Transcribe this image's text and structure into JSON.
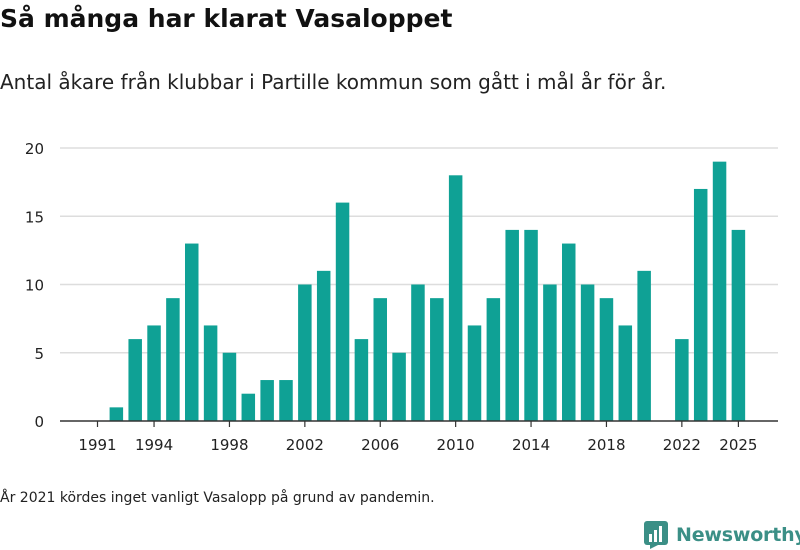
{
  "header": {
    "title": "Så många har klarat Vasaloppet",
    "subtitle": "Antal åkare från klubbar i Partille kommun som gått i mål år för år."
  },
  "footnote": "År 2021 kördes inget vanligt Vasalopp på grund av pandemin.",
  "brand": {
    "name": "Newsworthy",
    "icon": "bar-chart-logo-icon",
    "color": "#3b8f86"
  },
  "colors": {
    "bar": "#0fa195",
    "grid": "#dddddd",
    "axis": "#333333",
    "text": "#222222"
  },
  "chart_data": {
    "type": "bar",
    "title": "Så många har klarat Vasaloppet",
    "subtitle": "Antal åkare från klubbar i Partille kommun som gått i mål år för år.",
    "xlabel": "",
    "ylabel": "",
    "x": [
      1991,
      1992,
      1993,
      1994,
      1995,
      1996,
      1997,
      1998,
      1999,
      2000,
      2001,
      2002,
      2003,
      2004,
      2005,
      2006,
      2007,
      2008,
      2009,
      2010,
      2011,
      2012,
      2013,
      2014,
      2015,
      2016,
      2017,
      2018,
      2019,
      2020,
      2021,
      2022,
      2023,
      2024,
      2025
    ],
    "values": [
      0,
      1,
      6,
      7,
      9,
      13,
      7,
      5,
      2,
      3,
      3,
      10,
      11,
      16,
      6,
      9,
      5,
      10,
      9,
      18,
      7,
      9,
      14,
      14,
      10,
      13,
      10,
      9,
      7,
      11,
      null,
      6,
      17,
      19,
      14
    ],
    "ylim": [
      0,
      20
    ],
    "yticks": [
      0,
      5,
      10,
      15,
      20
    ],
    "xticks": [
      1991,
      1994,
      1998,
      2002,
      2006,
      2010,
      2014,
      2018,
      2022,
      2025
    ],
    "grid": true,
    "legend": "none"
  }
}
